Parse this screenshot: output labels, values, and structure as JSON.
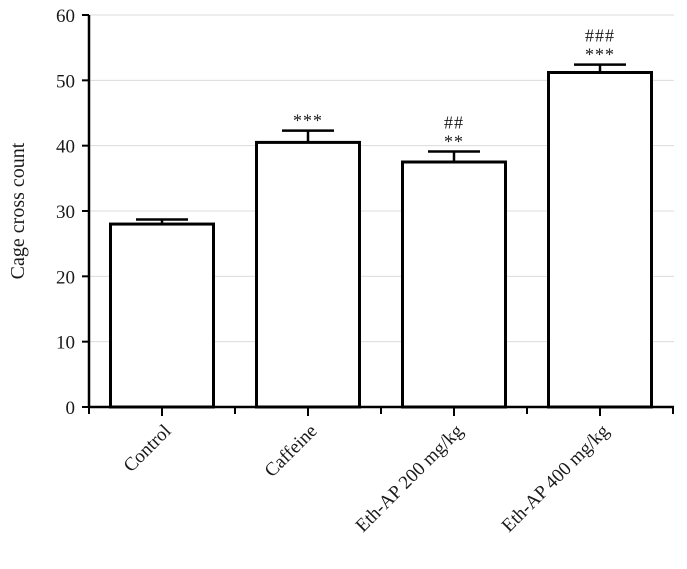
{
  "chart_data": {
    "type": "bar",
    "title": "",
    "xlabel": "",
    "ylabel": "Cage cross count",
    "ylim": [
      0,
      60
    ],
    "yticks": [
      0,
      10,
      20,
      30,
      40,
      50,
      60
    ],
    "grid": true,
    "categories": [
      "Control",
      "Caffeine",
      "Eth-AP 200 mg/kg",
      "Eth-AP 400 mg/kg"
    ],
    "values": [
      28,
      40.5,
      37.5,
      51.2
    ],
    "errors": [
      0.7,
      1.8,
      1.6,
      1.2
    ],
    "annotations_top": [
      "",
      "",
      "##",
      "###"
    ],
    "annotations_bottom": [
      "",
      "***",
      "**",
      "***"
    ],
    "colors": {
      "bar_fill": "#ffffff",
      "bar_stroke": "#000000",
      "grid": "#dcdcdc"
    }
  }
}
